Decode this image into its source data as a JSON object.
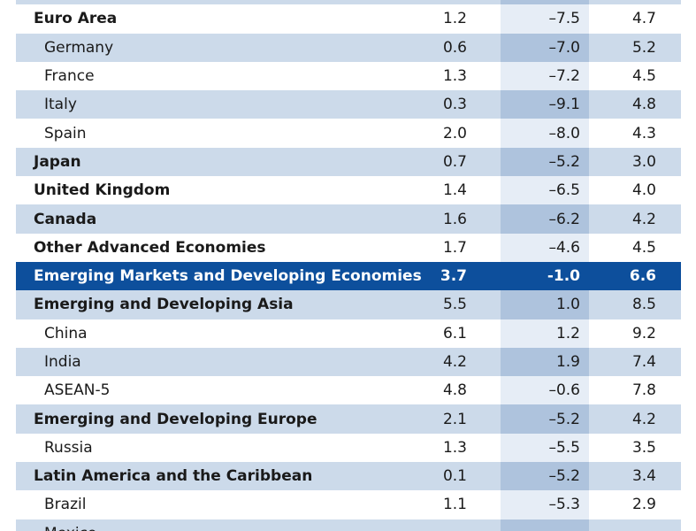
{
  "chart_data": {
    "type": "table",
    "rows": [
      {
        "label": "",
        "v1": "",
        "v2": "",
        "v3": "",
        "style": "light"
      },
      {
        "label": "Euro Area",
        "v1": "1.2",
        "v2": "–7.5",
        "v3": "4.7",
        "style": "white",
        "level": "bold"
      },
      {
        "label": "Germany",
        "v1": "0.6",
        "v2": "–7.0",
        "v3": "5.2",
        "style": "light",
        "level": "sub"
      },
      {
        "label": "France",
        "v1": "1.3",
        "v2": "–7.2",
        "v3": "4.5",
        "style": "white",
        "level": "sub"
      },
      {
        "label": "Italy",
        "v1": "0.3",
        "v2": "–9.1",
        "v3": "4.8",
        "style": "light",
        "level": "sub"
      },
      {
        "label": "Spain",
        "v1": "2.0",
        "v2": "–8.0",
        "v3": "4.3",
        "style": "white",
        "level": "sub"
      },
      {
        "label": "Japan",
        "v1": "0.7",
        "v2": "–5.2",
        "v3": "3.0",
        "style": "light",
        "level": "bold"
      },
      {
        "label": "United Kingdom",
        "v1": "1.4",
        "v2": "–6.5",
        "v3": "4.0",
        "style": "white",
        "level": "bold"
      },
      {
        "label": "Canada",
        "v1": "1.6",
        "v2": "–6.2",
        "v3": "4.2",
        "style": "light",
        "level": "bold"
      },
      {
        "label": "Other Advanced Economies",
        "v1": "1.7",
        "v2": "–4.6",
        "v3": "4.5",
        "style": "white",
        "level": "bold"
      },
      {
        "label": "Emerging Markets and Developing Economies",
        "v1": "3.7",
        "v2": "-1.0",
        "v3": "6.6",
        "style": "highlight",
        "level": "bold"
      },
      {
        "label": "Emerging and Developing Asia",
        "v1": "5.5",
        "v2": "1.0",
        "v3": "8.5",
        "style": "light",
        "level": "bold"
      },
      {
        "label": "China",
        "v1": "6.1",
        "v2": "1.2",
        "v3": "9.2",
        "style": "white",
        "level": "sub"
      },
      {
        "label": "India",
        "v1": "4.2",
        "v2": "1.9",
        "v3": "7.4",
        "style": "light",
        "level": "sub"
      },
      {
        "label": "ASEAN-5",
        "v1": "4.8",
        "v2": "–0.6",
        "v3": "7.8",
        "style": "white",
        "level": "sub"
      },
      {
        "label": "Emerging and Developing Europe",
        "v1": "2.1",
        "v2": "–5.2",
        "v3": "4.2",
        "style": "light",
        "level": "bold"
      },
      {
        "label": "Russia",
        "v1": "1.3",
        "v2": "–5.5",
        "v3": "3.5",
        "style": "white",
        "level": "sub"
      },
      {
        "label": "Latin America and the Caribbean",
        "v1": "0.1",
        "v2": "–5.2",
        "v3": "3.4",
        "style": "light",
        "level": "bold"
      },
      {
        "label": "Brazil",
        "v1": "1.1",
        "v2": "–5.3",
        "v3": "2.9",
        "style": "white",
        "level": "sub"
      },
      {
        "label": "Mexico",
        "v1": "",
        "v2": "",
        "v3": "",
        "style": "light",
        "level": "sub"
      }
    ]
  },
  "colors": {
    "row_light": "#ccdaea",
    "row_white": "#ffffff",
    "highlight": "#0d4f9c",
    "col2_light": "#aec3dd",
    "col2_white": "#e6edf6"
  }
}
